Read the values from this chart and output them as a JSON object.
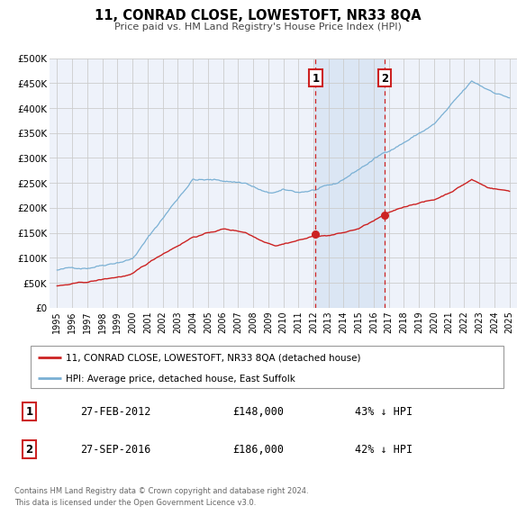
{
  "title": "11, CONRAD CLOSE, LOWESTOFT, NR33 8QA",
  "subtitle": "Price paid vs. HM Land Registry's House Price Index (HPI)",
  "bg_color": "#ffffff",
  "plot_bg_color": "#eef2fa",
  "grid_color": "#cccccc",
  "hpi_color": "#7ab0d4",
  "price_color": "#cc2222",
  "marker_color": "#cc2222",
  "shade_color": "#ccddf0",
  "vline_color": "#cc2222",
  "ylim": [
    0,
    500000
  ],
  "yticks": [
    0,
    50000,
    100000,
    150000,
    200000,
    250000,
    300000,
    350000,
    400000,
    450000,
    500000
  ],
  "ytick_labels": [
    "£0",
    "£50K",
    "£100K",
    "£150K",
    "£200K",
    "£250K",
    "£300K",
    "£350K",
    "£400K",
    "£450K",
    "£500K"
  ],
  "xlim_start": 1994.5,
  "xlim_end": 2025.5,
  "xticks": [
    1995,
    1996,
    1997,
    1998,
    1999,
    2000,
    2001,
    2002,
    2003,
    2004,
    2005,
    2006,
    2007,
    2008,
    2009,
    2010,
    2011,
    2012,
    2013,
    2014,
    2015,
    2016,
    2017,
    2018,
    2019,
    2020,
    2021,
    2022,
    2023,
    2024,
    2025
  ],
  "vline1_x": 2012.15,
  "vline2_x": 2016.73,
  "marker1_x": 2012.15,
  "marker1_y": 148000,
  "marker2_x": 2016.73,
  "marker2_y": 186000,
  "legend_line1": "11, CONRAD CLOSE, LOWESTOFT, NR33 8QA (detached house)",
  "legend_line2": "HPI: Average price, detached house, East Suffolk",
  "ann1_num": "1",
  "ann1_date": "27-FEB-2012",
  "ann1_price": "£148,000",
  "ann1_hpi": "43% ↓ HPI",
  "ann2_num": "2",
  "ann2_date": "27-SEP-2016",
  "ann2_price": "£186,000",
  "ann2_hpi": "42% ↓ HPI",
  "footnote": "Contains HM Land Registry data © Crown copyright and database right 2024.\nThis data is licensed under the Open Government Licence v3.0."
}
